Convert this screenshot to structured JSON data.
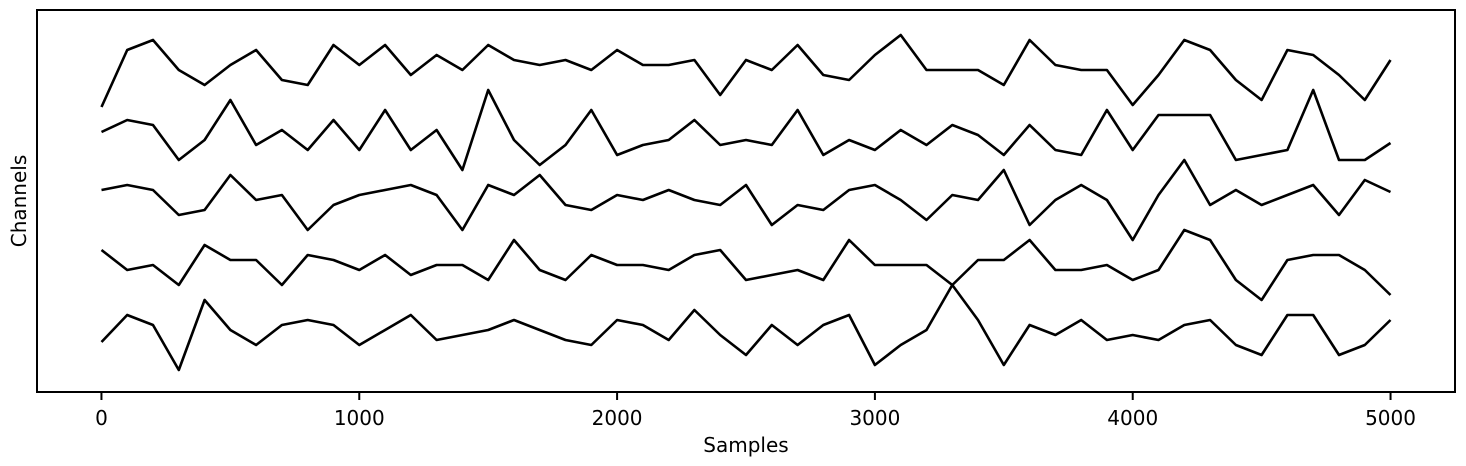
{
  "chart_data": {
    "type": "line",
    "x_label": "Samples",
    "y_label": "Channels",
    "x": [
      0,
      100,
      200,
      300,
      400,
      500,
      600,
      700,
      800,
      900,
      1000,
      1100,
      1200,
      1300,
      1400,
      1500,
      1600,
      1700,
      1800,
      1900,
      2000,
      2100,
      2200,
      2300,
      2400,
      2500,
      2600,
      2700,
      2800,
      2900,
      3000,
      3100,
      3200,
      3300,
      3400,
      3500,
      3600,
      3700,
      3800,
      3900,
      4000,
      4100,
      4200,
      4300,
      4400,
      4500,
      4600,
      4700,
      4800,
      4900,
      5000
    ],
    "xlim": [
      -250,
      5250
    ],
    "xticks": [
      0,
      1000,
      2000,
      3000,
      4000,
      5000
    ],
    "ylim": [
      8,
      390
    ],
    "series": [
      {
        "color": "#000000",
        "values": [
          293,
          350,
          360,
          330,
          315,
          335,
          350,
          320,
          315,
          355,
          335,
          355,
          325,
          345,
          330,
          355,
          340,
          335,
          340,
          330,
          350,
          335,
          335,
          340,
          305,
          340,
          330,
          355,
          325,
          320,
          345,
          365,
          330,
          330,
          330,
          315,
          360,
          335,
          330,
          330,
          295,
          325,
          360,
          350,
          320,
          300,
          350,
          345,
          325,
          300,
          340
        ]
      },
      {
        "color": "#000000",
        "values": [
          268,
          280,
          275,
          240,
          260,
          300,
          255,
          270,
          250,
          280,
          250,
          290,
          250,
          270,
          230,
          310,
          260,
          235,
          255,
          290,
          245,
          255,
          260,
          280,
          255,
          260,
          255,
          290,
          245,
          260,
          250,
          270,
          255,
          275,
          265,
          245,
          275,
          250,
          245,
          290,
          250,
          285,
          285,
          285,
          240,
          245,
          250,
          310,
          240,
          240,
          257
        ]
      },
      {
        "color": "#000000",
        "values": [
          210,
          215,
          210,
          185,
          190,
          225,
          200,
          205,
          170,
          195,
          205,
          210,
          215,
          205,
          170,
          215,
          205,
          225,
          195,
          190,
          205,
          200,
          210,
          200,
          195,
          215,
          175,
          195,
          190,
          210,
          215,
          200,
          180,
          205,
          200,
          230,
          175,
          200,
          215,
          200,
          160,
          205,
          240,
          195,
          210,
          195,
          205,
          215,
          185,
          220,
          208
        ]
      },
      {
        "color": "#000000",
        "values": [
          150,
          130,
          135,
          115,
          155,
          140,
          140,
          115,
          145,
          140,
          130,
          145,
          125,
          135,
          135,
          120,
          160,
          130,
          120,
          145,
          135,
          135,
          130,
          145,
          150,
          120,
          125,
          130,
          120,
          160,
          135,
          135,
          135,
          115,
          140,
          140,
          160,
          130,
          130,
          135,
          120,
          130,
          170,
          160,
          120,
          100,
          140,
          145,
          145,
          130,
          105
        ]
      },
      {
        "color": "#000000",
        "values": [
          58,
          85,
          75,
          30,
          100,
          70,
          55,
          75,
          80,
          75,
          55,
          70,
          85,
          60,
          65,
          70,
          80,
          70,
          60,
          55,
          80,
          75,
          60,
          90,
          65,
          45,
          75,
          55,
          75,
          85,
          35,
          55,
          70,
          115,
          80,
          35,
          75,
          65,
          80,
          60,
          65,
          60,
          75,
          80,
          55,
          45,
          85,
          85,
          45,
          55,
          80
        ]
      }
    ]
  }
}
